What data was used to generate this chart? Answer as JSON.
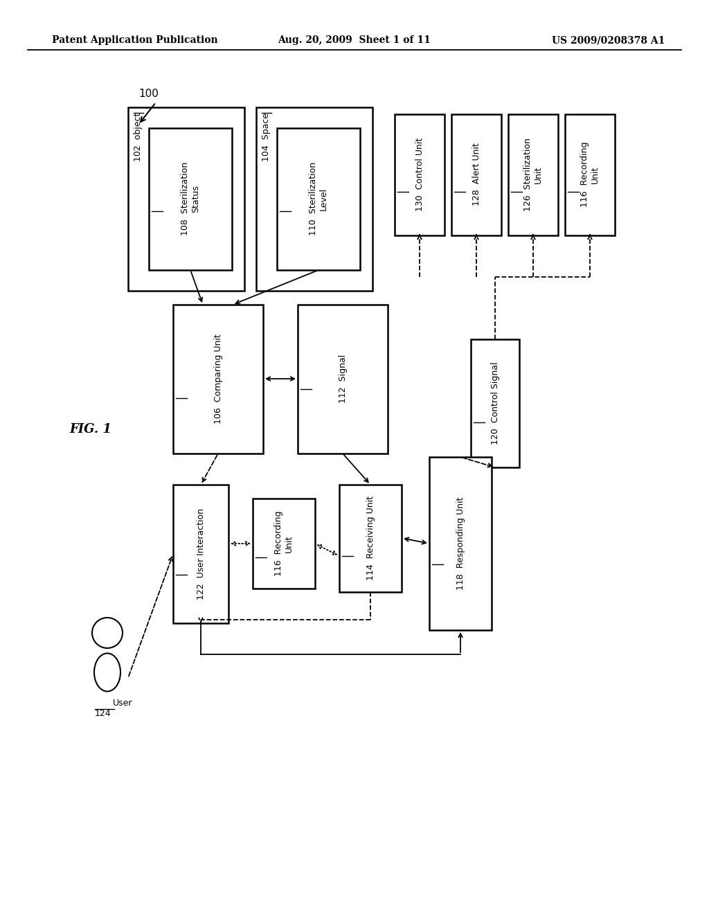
{
  "background_color": "#ffffff",
  "header_left": "Patent Application Publication",
  "header_center": "Aug. 20, 2009  Sheet 1 of 11",
  "header_right": "US 2009/0208378 A1",
  "fig_label": "FIG. 1",
  "diagram_label": "100"
}
